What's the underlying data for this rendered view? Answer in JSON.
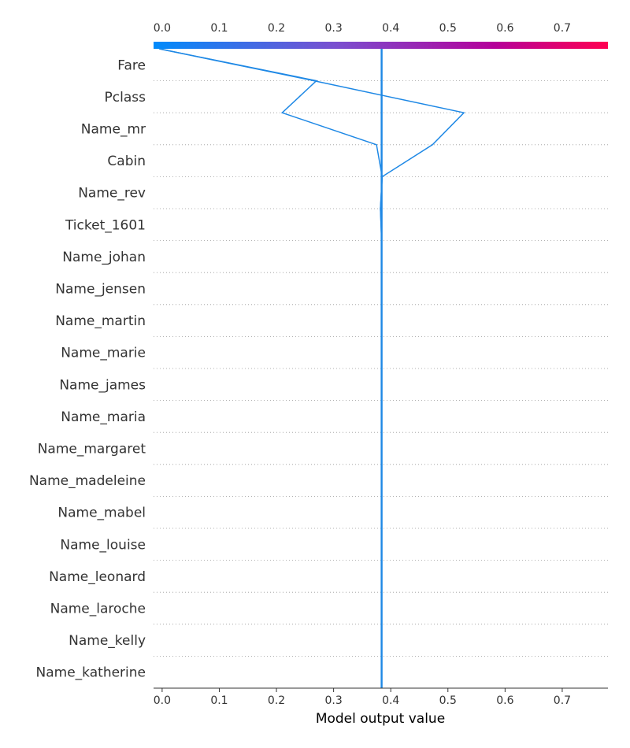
{
  "chart_data": {
    "type": "decision_plot",
    "xlabel": "Model output value",
    "xlim": [
      -0.015,
      0.78
    ],
    "ticks": [
      0.0,
      0.1,
      0.2,
      0.3,
      0.4,
      0.5,
      0.6,
      0.7
    ],
    "tick_labels": [
      "0.0",
      "0.1",
      "0.2",
      "0.3",
      "0.4",
      "0.5",
      "0.6",
      "0.7"
    ],
    "base_value": 0.384,
    "colorbar": {
      "colors": [
        "#008bfb",
        "#7a4fd0",
        "#b5009a",
        "#ff0051"
      ]
    },
    "features": [
      "Fare",
      "Pclass",
      "Name_mr",
      "Cabin",
      "Name_rev",
      "Ticket_1601",
      "Name_johan",
      "Name_jensen",
      "Name_martin",
      "Name_marie",
      "Name_james",
      "Name_maria",
      "Name_margaret",
      "Name_madeleine",
      "Name_mabel",
      "Name_louise",
      "Name_leonard",
      "Name_laroche",
      "Name_kelly",
      "Name_katherine"
    ],
    "series": [
      {
        "color": "#1e88e5",
        "cumulative_values": [
          -0.005,
          0.266,
          0.528,
          0.473,
          0.385,
          0.382,
          0.384,
          0.384,
          0.384,
          0.384,
          0.384,
          0.384,
          0.384,
          0.384,
          0.384,
          0.384,
          0.384,
          0.384,
          0.384,
          0.384,
          0.384
        ]
      },
      {
        "color": "#1e88e5",
        "cumulative_values": [
          -0.005,
          0.27,
          0.21,
          0.375,
          0.385,
          0.382,
          0.384,
          0.384,
          0.384,
          0.384,
          0.384,
          0.384,
          0.384,
          0.384,
          0.384,
          0.384,
          0.384,
          0.384,
          0.384,
          0.384,
          0.384
        ]
      },
      {
        "color": "#1e88e5",
        "cumulative_values": [
          0.384,
          0.384,
          0.384,
          0.384,
          0.384,
          0.384,
          0.384,
          0.384,
          0.384,
          0.384,
          0.384,
          0.384,
          0.384,
          0.384,
          0.384,
          0.384,
          0.384,
          0.384,
          0.384,
          0.384,
          0.384
        ]
      }
    ]
  }
}
